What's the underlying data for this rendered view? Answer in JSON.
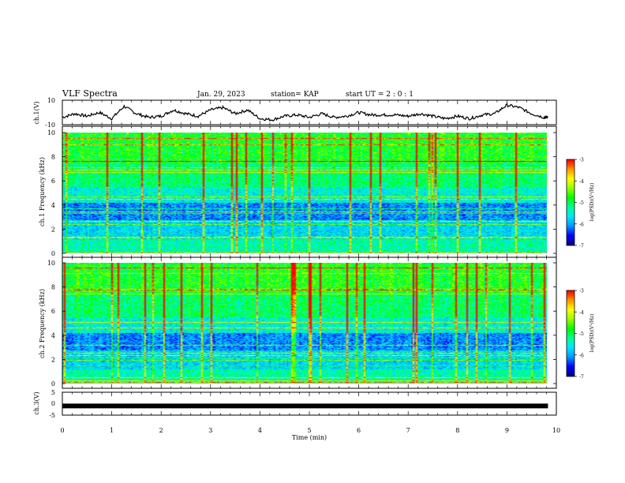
{
  "header": {
    "title": "VLF Spectra",
    "date": "Jan. 29, 2023",
    "station": "station= KAP",
    "start": "start UT =  2 : 0 : 1"
  },
  "colors": {
    "palette": [
      "#000080",
      "#0000ff",
      "#0096ff",
      "#00e6ff",
      "#00ff96",
      "#00ff00",
      "#96ff00",
      "#ffff00",
      "#ff9600",
      "#ff0000"
    ],
    "trace": "#000000",
    "background": "#ffffff"
  },
  "chart_data": [
    {
      "type": "line",
      "panel": "ch1-waveform",
      "ylabel": "ch.1(V)",
      "ylim": [
        -10,
        10
      ],
      "yticks": [
        "10",
        "-10"
      ],
      "xlim": [
        0,
        10
      ],
      "series": [
        {
          "x": [
            0,
            0.25,
            0.5,
            0.75,
            1.0,
            1.25,
            1.5,
            1.75,
            2.0,
            2.25,
            2.5,
            2.75,
            3.0,
            3.25,
            3.5,
            3.75,
            4.0,
            4.25,
            4.5,
            4.75,
            5.0,
            5.25,
            5.5,
            5.75,
            6.0,
            6.25,
            6.5,
            6.75,
            7.0,
            7.25,
            7.5,
            7.75,
            8.0,
            8.25,
            8.5,
            8.75,
            9.0,
            9.25,
            9.5,
            9.75,
            9.83
          ],
          "y": [
            -4,
            -1,
            -3,
            0,
            -5,
            5,
            -1,
            -4,
            -3,
            2,
            -1,
            -3,
            2,
            4,
            -1,
            2,
            -5,
            -6,
            -3,
            -2,
            -4,
            -1,
            -4,
            -3,
            0,
            -2,
            -2,
            -2,
            -3,
            -1,
            -3,
            -5,
            -3,
            -5,
            -2,
            -1,
            6,
            4,
            -1,
            -4,
            -4
          ]
        }
      ]
    },
    {
      "type": "heatmap",
      "panel": "ch1-spectrogram",
      "ylabel": "ch.1 Frequency (kHz)",
      "ylim": [
        0,
        10
      ],
      "yticks": [
        "0",
        "2",
        "4",
        "6",
        "8",
        "10"
      ],
      "xlim": [
        0,
        10
      ],
      "colorbar": {
        "label": "log(PSD)(V²/Hz)",
        "range": [
          -7,
          -3
        ],
        "ticks": [
          "-3",
          "-4",
          "-5",
          "-6",
          "-7"
        ]
      }
    },
    {
      "type": "heatmap",
      "panel": "ch2-spectrogram",
      "ylabel": "ch.2 Frequency (kHz)",
      "ylim": [
        0,
        10
      ],
      "yticks": [
        "0",
        "2",
        "4",
        "6",
        "8",
        "10"
      ],
      "xlim": [
        0,
        10
      ],
      "colorbar": {
        "label": "log(PSD)(V²/Hz)",
        "range": [
          -7,
          -3
        ],
        "ticks": [
          "-3",
          "-4",
          "-5",
          "-6",
          "-7"
        ]
      }
    },
    {
      "type": "line",
      "panel": "ch3-waveform",
      "ylabel": "ch.3(V)",
      "ylim": [
        -5,
        5
      ],
      "yticks": [
        "5",
        "0",
        "-5"
      ],
      "xlim": [
        0,
        10
      ],
      "series": [
        {
          "x": [
            0,
            9.83
          ],
          "y": [
            -1,
            -1
          ]
        }
      ]
    }
  ],
  "xaxis": {
    "label": "Time (min)",
    "ticks": [
      "0",
      "1",
      "2",
      "3",
      "4",
      "5",
      "6",
      "7",
      "8",
      "9",
      "10"
    ]
  }
}
